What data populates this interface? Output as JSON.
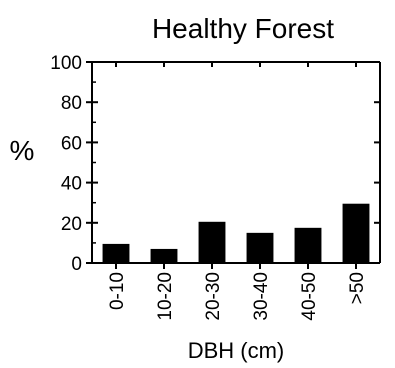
{
  "chart_data": {
    "type": "bar",
    "title": "Healthy Forest",
    "xlabel": "DBH (cm)",
    "ylabel": "%",
    "categories": [
      "0-10",
      "10-20",
      "20-30",
      "30-40",
      "40-50",
      ">50"
    ],
    "values": [
      9.5,
      7,
      20.5,
      15,
      17.5,
      29.5
    ],
    "ylim": [
      0,
      100
    ],
    "yticks": [
      0,
      20,
      40,
      60,
      80,
      100
    ],
    "grid": false,
    "bar_color": "#000000"
  }
}
